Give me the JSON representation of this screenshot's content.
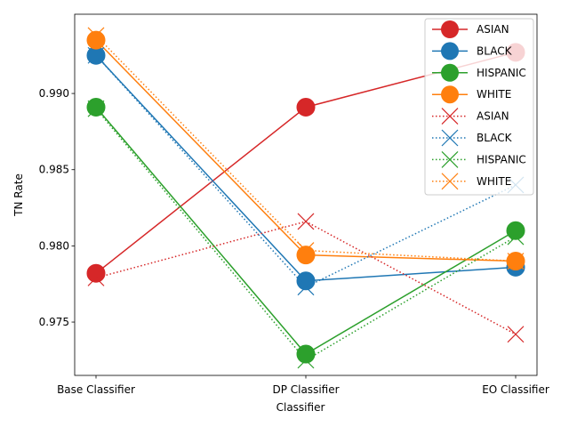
{
  "chart_data": {
    "type": "line",
    "title": "",
    "xlabel": "Classifier",
    "ylabel": "TN Rate",
    "categories": [
      "Base Classifier",
      "DP Classifier",
      "EO Classifier"
    ],
    "ylim": [
      0.9715,
      0.9952
    ],
    "yticks": [
      0.975,
      0.98,
      0.985,
      0.99
    ],
    "ytick_labels": [
      "0.975",
      "0.980",
      "0.985",
      "0.990"
    ],
    "grid": false,
    "legend_position": "top-right",
    "series": [
      {
        "name": "ASIAN",
        "color": "#d62728",
        "marker": "circle",
        "linestyle": "solid",
        "values": [
          0.9782,
          0.9891,
          0.9927
        ]
      },
      {
        "name": "BLACK",
        "color": "#1f77b4",
        "marker": "circle",
        "linestyle": "solid",
        "values": [
          0.9925,
          0.9777,
          0.9786
        ]
      },
      {
        "name": "HISPANIC",
        "color": "#2ca02c",
        "marker": "circle",
        "linestyle": "solid",
        "values": [
          0.9891,
          0.9729,
          0.981
        ]
      },
      {
        "name": "WHITE",
        "color": "#ff7f0e",
        "marker": "circle",
        "linestyle": "solid",
        "values": [
          0.9935,
          0.9794,
          0.979
        ]
      },
      {
        "name": "ASIAN",
        "color": "#d62728",
        "marker": "x",
        "linestyle": "dotted",
        "values": [
          0.9779,
          0.9816,
          0.9742
        ]
      },
      {
        "name": "BLACK",
        "color": "#1f77b4",
        "marker": "x",
        "linestyle": "dotted",
        "values": [
          0.9925,
          0.9773,
          0.984
        ]
      },
      {
        "name": "HISPANIC",
        "color": "#2ca02c",
        "marker": "x",
        "linestyle": "dotted",
        "values": [
          0.989,
          0.9725,
          0.9806
        ]
      },
      {
        "name": "WHITE",
        "color": "#ff7f0e",
        "marker": "x",
        "linestyle": "dotted",
        "values": [
          0.9938,
          0.9797,
          0.979
        ]
      }
    ]
  }
}
